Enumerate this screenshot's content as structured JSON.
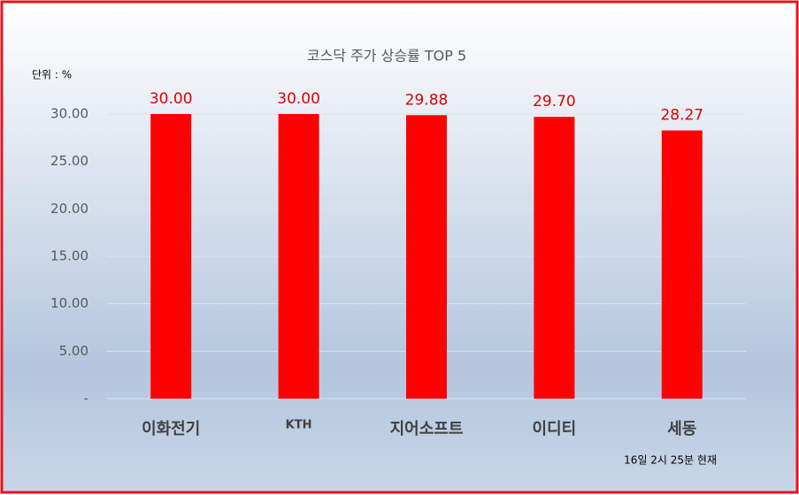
{
  "chart_data": {
    "type": "bar",
    "title": "코스닥 주가 상승률 TOP 5",
    "unit_label": "단위 : %",
    "categories": [
      "이화전기",
      "KTH",
      "지어소프트",
      "이디티",
      "세동"
    ],
    "values": [
      30,
      30,
      29.88,
      29.7,
      28.27
    ],
    "value_labels": [
      "30.00",
      "30.00",
      "29.88",
      "29.70",
      "28.27"
    ],
    "color": "#ff0000",
    "ylim": [
      0,
      30
    ],
    "yticks": [
      {
        "value": 0,
        "label": "-"
      },
      {
        "value": 5,
        "label": "5.00"
      },
      {
        "value": 10,
        "label": "10.00"
      },
      {
        "value": 15,
        "label": "15.00"
      },
      {
        "value": 20,
        "label": "20.00"
      },
      {
        "value": 25,
        "label": "25.00"
      },
      {
        "value": 30,
        "label": "30.00"
      }
    ],
    "grid": true,
    "footnote": "16일 2시 25분 현재"
  }
}
